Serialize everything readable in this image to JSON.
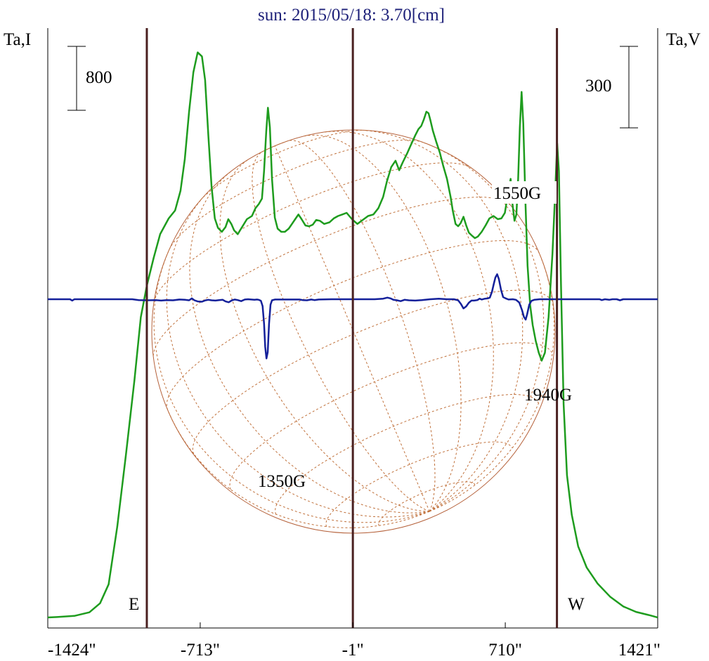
{
  "chart_data": {
    "type": "line",
    "title": "sun: 2015/05/18: 3.70[cm]",
    "y_left_label": "Ta,I",
    "y_right_label": "Ta,V",
    "x_ticks": [
      {
        "value": -1424,
        "label": "-1424\""
      },
      {
        "value": -713,
        "label": "-713\""
      },
      {
        "value": -1,
        "label": "-1\""
      },
      {
        "value": 710,
        "label": "710\""
      },
      {
        "value": 1421,
        "label": "1421\""
      }
    ],
    "xlim": [
      -1424,
      1421
    ],
    "limb_lines": [
      -962,
      -1,
      951
    ],
    "limb_labels": {
      "east": "E",
      "west": "W"
    },
    "scale_bars": [
      {
        "label": "800",
        "side": "left",
        "units": 800
      },
      {
        "label": "300",
        "side": "right",
        "units": 300
      }
    ],
    "series": [
      {
        "name": "Ta,I",
        "color": "#1e9c1e",
        "points": [
          [
            -1424,
            0
          ],
          [
            -1380,
            5
          ],
          [
            -1300,
            20
          ],
          [
            -1230,
            65
          ],
          [
            -1180,
            180
          ],
          [
            -1140,
            420
          ],
          [
            -1100,
            1150
          ],
          [
            -1060,
            2050
          ],
          [
            -1020,
            3000
          ],
          [
            -990,
            3800
          ],
          [
            -962,
            4200
          ],
          [
            -930,
            4550
          ],
          [
            -900,
            4850
          ],
          [
            -860,
            5050
          ],
          [
            -830,
            5150
          ],
          [
            -805,
            5400
          ],
          [
            -785,
            5800
          ],
          [
            -765,
            6400
          ],
          [
            -745,
            6900
          ],
          [
            -725,
            7150
          ],
          [
            -705,
            7100
          ],
          [
            -690,
            6800
          ],
          [
            -675,
            6100
          ],
          [
            -660,
            5450
          ],
          [
            -645,
            5050
          ],
          [
            -630,
            4930
          ],
          [
            -612,
            4880
          ],
          [
            -595,
            4940
          ],
          [
            -582,
            5040
          ],
          [
            -568,
            4980
          ],
          [
            -555,
            4900
          ],
          [
            -538,
            4850
          ],
          [
            -520,
            4930
          ],
          [
            -495,
            5040
          ],
          [
            -472,
            5080
          ],
          [
            -455,
            5180
          ],
          [
            -440,
            5230
          ],
          [
            -425,
            5300
          ],
          [
            -415,
            5650
          ],
          [
            -405,
            6150
          ],
          [
            -397,
            6450
          ],
          [
            -388,
            6200
          ],
          [
            -378,
            5550
          ],
          [
            -365,
            5060
          ],
          [
            -352,
            4920
          ],
          [
            -335,
            4880
          ],
          [
            -318,
            4880
          ],
          [
            -300,
            4920
          ],
          [
            -285,
            4980
          ],
          [
            -270,
            5040
          ],
          [
            -255,
            5100
          ],
          [
            -240,
            5040
          ],
          [
            -222,
            4960
          ],
          [
            -205,
            4950
          ],
          [
            -188,
            4970
          ],
          [
            -172,
            5030
          ],
          [
            -155,
            5020
          ],
          [
            -135,
            4980
          ],
          [
            -110,
            5000
          ],
          [
            -90,
            5050
          ],
          [
            -70,
            5080
          ],
          [
            -50,
            5100
          ],
          [
            -30,
            5120
          ],
          [
            -5,
            5040
          ],
          [
            20,
            4980
          ],
          [
            45,
            5030
          ],
          [
            70,
            5080
          ],
          [
            95,
            5100
          ],
          [
            118,
            5180
          ],
          [
            140,
            5320
          ],
          [
            158,
            5520
          ],
          [
            178,
            5700
          ],
          [
            198,
            5780
          ],
          [
            215,
            5660
          ],
          [
            232,
            5760
          ],
          [
            252,
            5870
          ],
          [
            270,
            5980
          ],
          [
            290,
            6100
          ],
          [
            305,
            6180
          ],
          [
            318,
            6220
          ],
          [
            330,
            6300
          ],
          [
            342,
            6400
          ],
          [
            352,
            6380
          ],
          [
            360,
            6300
          ],
          [
            372,
            6160
          ],
          [
            388,
            6020
          ],
          [
            405,
            5880
          ],
          [
            420,
            5720
          ],
          [
            438,
            5550
          ],
          [
            455,
            5320
          ],
          [
            465,
            5150
          ],
          [
            478,
            4980
          ],
          [
            490,
            4950
          ],
          [
            502,
            4990
          ],
          [
            515,
            5070
          ],
          [
            528,
            4960
          ],
          [
            540,
            4870
          ],
          [
            555,
            4830
          ],
          [
            568,
            4800
          ],
          [
            582,
            4820
          ],
          [
            600,
            4880
          ],
          [
            618,
            4960
          ],
          [
            636,
            5050
          ],
          [
            655,
            5080
          ],
          [
            675,
            5040
          ],
          [
            692,
            5050
          ],
          [
            708,
            5120
          ],
          [
            722,
            5350
          ],
          [
            735,
            5550
          ],
          [
            743,
            5250
          ],
          [
            753,
            5020
          ],
          [
            762,
            5100
          ],
          [
            770,
            5550
          ],
          [
            778,
            6200
          ],
          [
            786,
            6650
          ],
          [
            794,
            6250
          ],
          [
            804,
            5250
          ],
          [
            814,
            4450
          ],
          [
            826,
            3950
          ],
          [
            838,
            3700
          ],
          [
            852,
            3500
          ],
          [
            866,
            3350
          ],
          [
            880,
            3250
          ],
          [
            895,
            3350
          ],
          [
            912,
            3800
          ],
          [
            930,
            4600
          ],
          [
            943,
            5400
          ],
          [
            952,
            6000
          ],
          [
            960,
            5650
          ],
          [
            970,
            4200
          ],
          [
            982,
            2700
          ],
          [
            998,
            1800
          ],
          [
            1020,
            1300
          ],
          [
            1050,
            900
          ],
          [
            1090,
            630
          ],
          [
            1140,
            430
          ],
          [
            1200,
            260
          ],
          [
            1260,
            140
          ],
          [
            1320,
            70
          ],
          [
            1380,
            30
          ],
          [
            1421,
            0
          ]
        ]
      },
      {
        "name": "Ta,V",
        "color": "#14209a",
        "points": [
          [
            -1424,
            0
          ],
          [
            -1320,
            0
          ],
          [
            -1310,
            -5
          ],
          [
            -1300,
            0
          ],
          [
            -1030,
            0
          ],
          [
            -1000,
            -3
          ],
          [
            -960,
            -4
          ],
          [
            -920,
            -3
          ],
          [
            -895,
            -5
          ],
          [
            -870,
            -3
          ],
          [
            -840,
            -4
          ],
          [
            -810,
            -1
          ],
          [
            -785,
            -2
          ],
          [
            -765,
            -4
          ],
          [
            -752,
            3
          ],
          [
            -740,
            -4
          ],
          [
            -725,
            -8
          ],
          [
            -705,
            -9
          ],
          [
            -688,
            -4
          ],
          [
            -675,
            -2
          ],
          [
            -660,
            -4
          ],
          [
            -642,
            -5
          ],
          [
            -625,
            -3
          ],
          [
            -608,
            -2
          ],
          [
            -595,
            -8
          ],
          [
            -580,
            -11
          ],
          [
            -565,
            -4
          ],
          [
            -552,
            -1
          ],
          [
            -538,
            -3
          ],
          [
            -522,
            -7
          ],
          [
            -505,
            -1
          ],
          [
            -490,
            0
          ],
          [
            -475,
            -1
          ],
          [
            -460,
            -2
          ],
          [
            -448,
            -1
          ],
          [
            -440,
            -2
          ],
          [
            -430,
            -6
          ],
          [
            -422,
            -25
          ],
          [
            -415,
            -90
          ],
          [
            -410,
            -175
          ],
          [
            -404,
            -218
          ],
          [
            -398,
            -195
          ],
          [
            -392,
            -90
          ],
          [
            -385,
            -20
          ],
          [
            -378,
            -4
          ],
          [
            -365,
            -1
          ],
          [
            -250,
            -1
          ],
          [
            -235,
            -3
          ],
          [
            -215,
            -4
          ],
          [
            -195,
            -1
          ],
          [
            -180,
            -3
          ],
          [
            -160,
            -1
          ],
          [
            -100,
            0
          ],
          [
            -60,
            0
          ],
          [
            -20,
            0
          ],
          [
            40,
            0
          ],
          [
            100,
            0
          ],
          [
            140,
            2
          ],
          [
            160,
            6
          ],
          [
            175,
            3
          ],
          [
            188,
            -2
          ],
          [
            205,
            -4
          ],
          [
            222,
            -7
          ],
          [
            240,
            -2
          ],
          [
            260,
            -4
          ],
          [
            290,
            -5
          ],
          [
            320,
            -3
          ],
          [
            360,
            0
          ],
          [
            400,
            2
          ],
          [
            440,
            0
          ],
          [
            470,
            0
          ],
          [
            490,
            -4
          ],
          [
            503,
            -17
          ],
          [
            515,
            -34
          ],
          [
            528,
            -26
          ],
          [
            540,
            -13
          ],
          [
            552,
            -5
          ],
          [
            565,
            -5
          ],
          [
            580,
            -3
          ],
          [
            590,
            2
          ],
          [
            600,
            -1
          ],
          [
            615,
            2
          ],
          [
            628,
            3
          ],
          [
            638,
            6
          ],
          [
            648,
            28
          ],
          [
            656,
            55
          ],
          [
            664,
            80
          ],
          [
            672,
            92
          ],
          [
            680,
            75
          ],
          [
            690,
            35
          ],
          [
            700,
            8
          ],
          [
            712,
            3
          ],
          [
            725,
            -1
          ],
          [
            745,
            0
          ],
          [
            760,
            -2
          ],
          [
            775,
            -12
          ],
          [
            788,
            -40
          ],
          [
            797,
            -65
          ],
          [
            805,
            -75
          ],
          [
            812,
            -55
          ],
          [
            822,
            -20
          ],
          [
            832,
            -6
          ],
          [
            845,
            -2
          ],
          [
            870,
            0
          ],
          [
            1150,
            0
          ],
          [
            1160,
            -3
          ],
          [
            1175,
            0
          ],
          [
            1195,
            -2
          ],
          [
            1210,
            0
          ],
          [
            1230,
            0
          ],
          [
            1245,
            -4
          ],
          [
            1260,
            0
          ],
          [
            1421,
            0
          ]
        ]
      }
    ],
    "annotations": [
      {
        "text": "1550G",
        "x": 585,
        "y": 6000,
        "axis": "I"
      },
      {
        "text": "1940G",
        "x": 818,
        "y": -104,
        "axis": "V"
      },
      {
        "text": "1350G",
        "x": -500,
        "y": -200,
        "axis": "V"
      }
    ]
  }
}
